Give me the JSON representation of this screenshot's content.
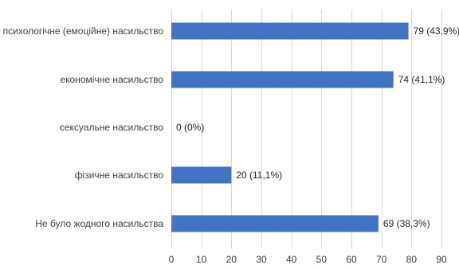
{
  "chart_data": {
    "type": "bar",
    "orientation": "horizontal",
    "categories": [
      "психологічне (емоційне) насильство",
      "економічне насильство",
      "сексуальне насильство",
      "фізичне насильство",
      "Не було жодного насильства"
    ],
    "values": [
      79,
      74,
      0,
      20,
      69
    ],
    "data_labels": [
      "79 (43,9%)",
      "74 (41,1%)",
      "0 (0%)",
      "20 (11,1%)",
      "69 (38,3%)"
    ],
    "xlim": [
      0,
      90
    ],
    "x_ticks": [
      0,
      10,
      20,
      30,
      40,
      50,
      60,
      70,
      80,
      90
    ],
    "grid": true,
    "legend": "none",
    "bar_color": "#4472c4"
  }
}
